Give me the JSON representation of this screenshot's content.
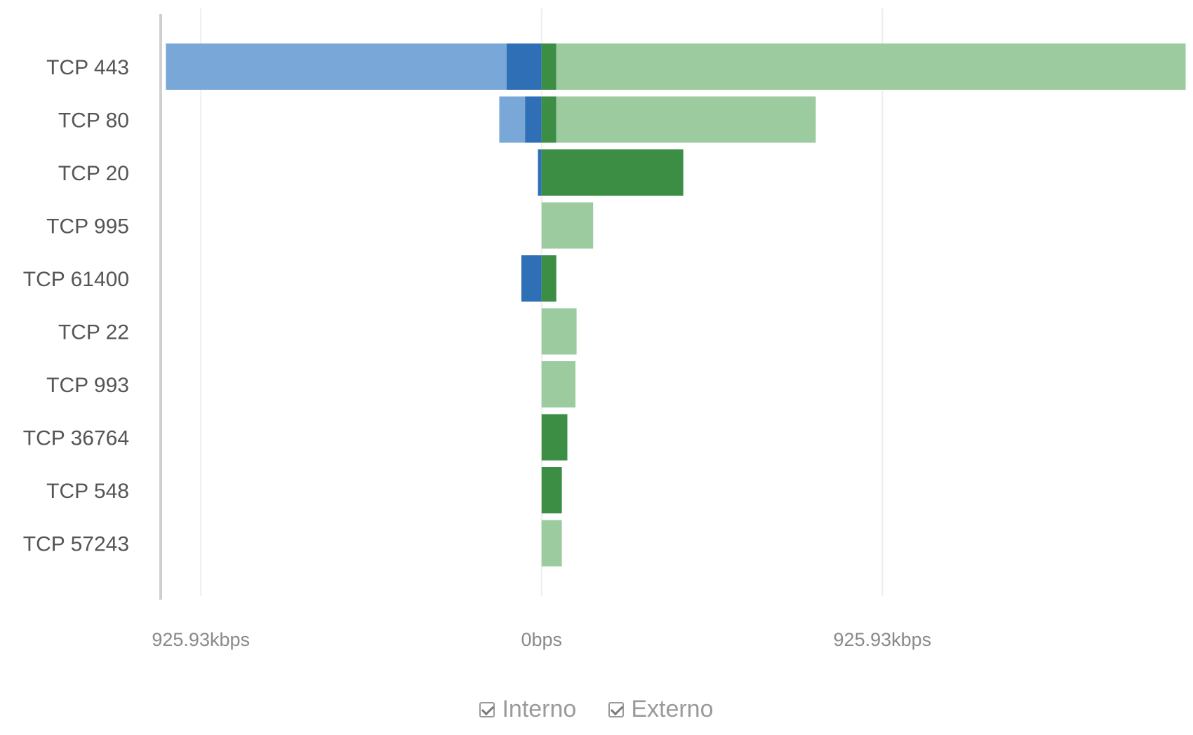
{
  "chart_data": {
    "type": "bar",
    "orientation": "horizontal-diverging",
    "categories": [
      "TCP 443",
      "TCP 80",
      "TCP 20",
      "TCP 995",
      "TCP 61400",
      "TCP 22",
      "TCP 993",
      "TCP 36764",
      "TCP 548",
      "TCP 57243"
    ],
    "series": [
      {
        "name": "Interno",
        "direction": "negative",
        "color": "#79a8d8",
        "color_dark": "#2f6fb5",
        "values_light": [
          925.93,
          70,
          0,
          0,
          0,
          0,
          0,
          0,
          0,
          0
        ],
        "values_dark": [
          95,
          45,
          10,
          0,
          55,
          0,
          0,
          0,
          0,
          0
        ]
      },
      {
        "name": "Externo",
        "direction": "positive",
        "color": "#9ccb9f",
        "color_dark": "#3c8e45",
        "values_light": [
          1710,
          705,
          0,
          140,
          0,
          95,
          92,
          0,
          0,
          55
        ],
        "values_dark": [
          40,
          40,
          385,
          0,
          40,
          0,
          0,
          70,
          55,
          0
        ]
      }
    ],
    "xticks": [
      {
        "value": -925.93,
        "label": "925.93kbps"
      },
      {
        "value": 0,
        "label": "0bps"
      },
      {
        "value": 925.93,
        "label": "925.93kbps"
      }
    ],
    "xlim": [
      -1035,
      1770
    ],
    "unit": "kbps",
    "grid": true,
    "legend_placement": "bottom-center"
  },
  "legend": {
    "items": [
      {
        "label": "Interno",
        "checked": true
      },
      {
        "label": "Externo",
        "checked": true
      }
    ]
  },
  "colors": {
    "axis": "#cfcfcf",
    "grid": "#eeeeee",
    "label": "#555555",
    "tick": "#8a8a8a"
  }
}
